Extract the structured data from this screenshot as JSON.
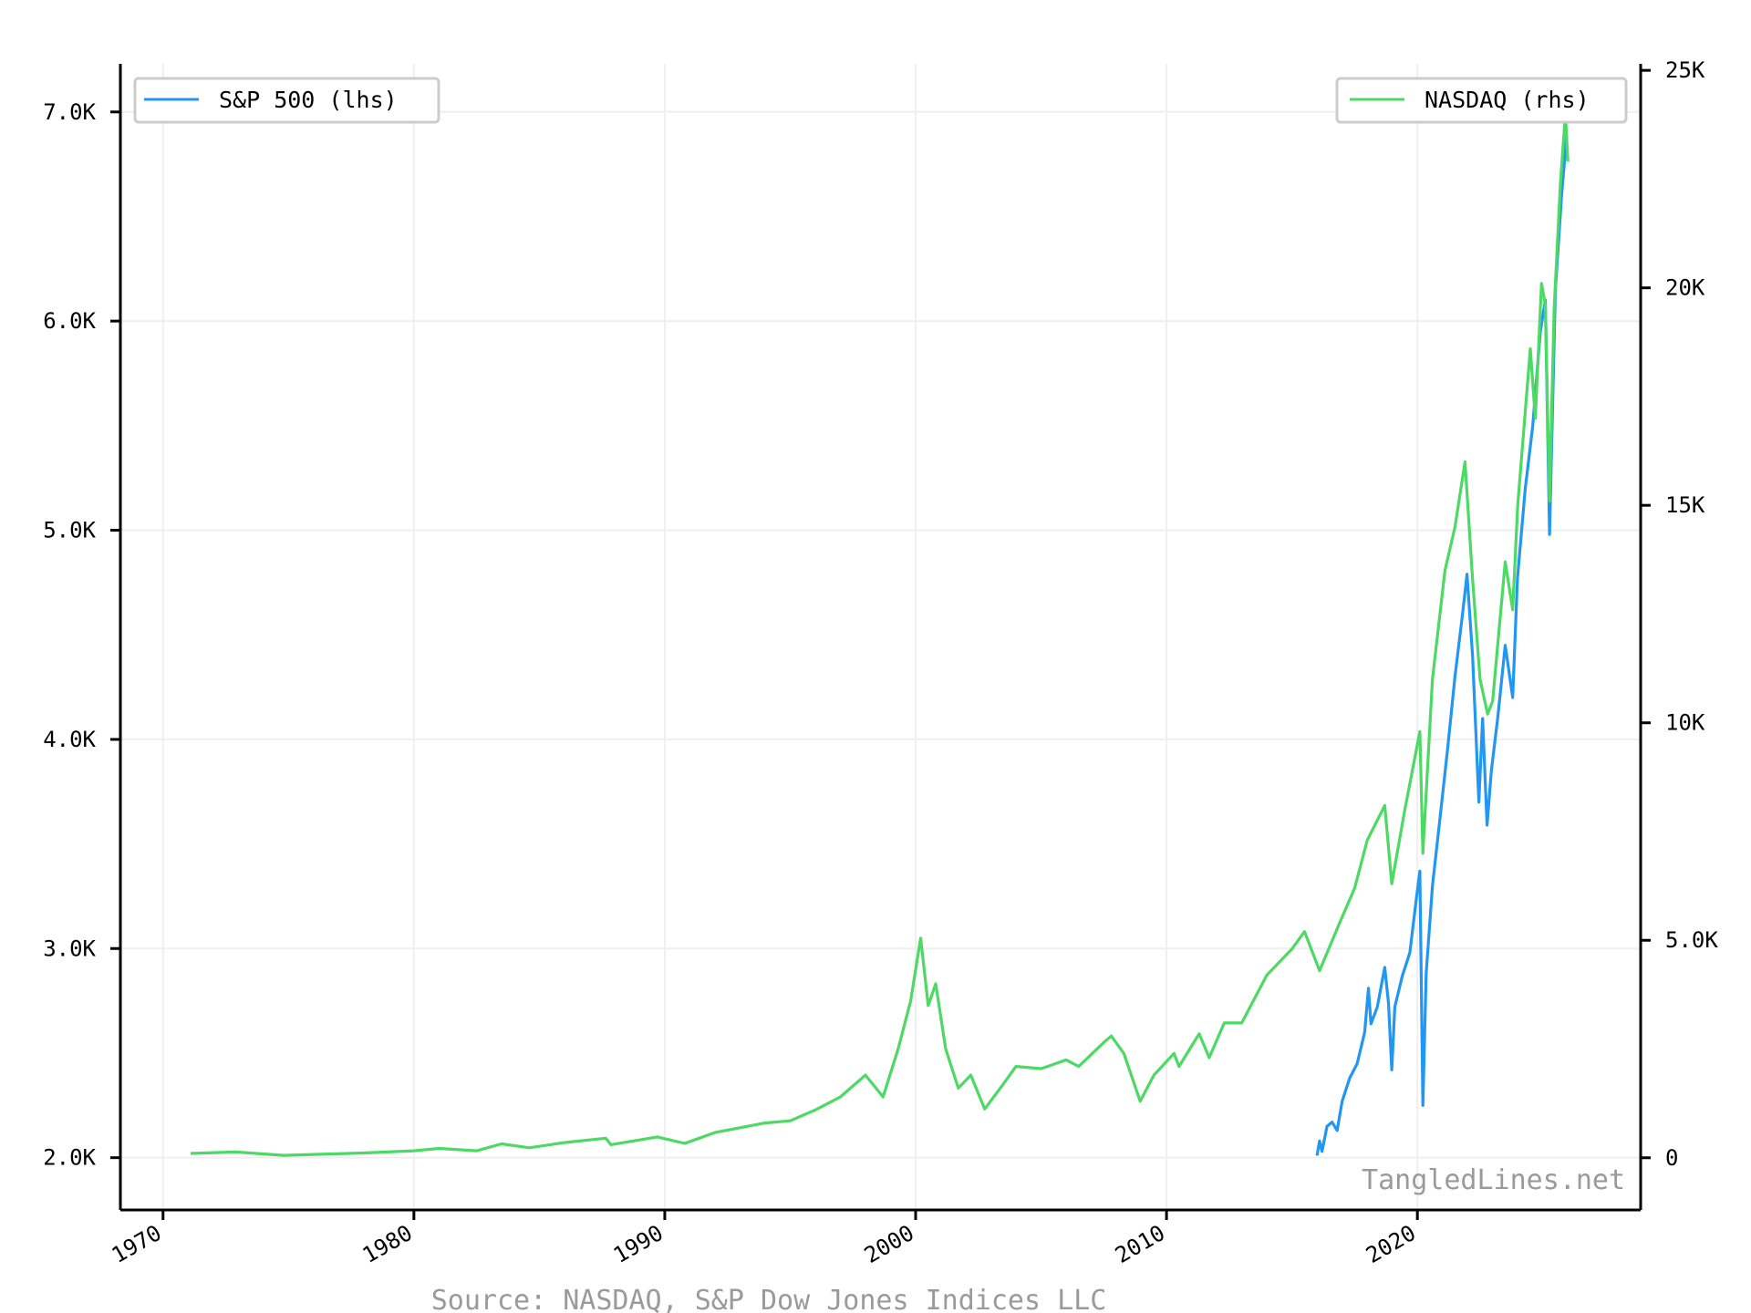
{
  "chart_data": {
    "type": "line",
    "title": "",
    "xlabel": "",
    "ylabel": "",
    "x_axis": {
      "ticks": [
        "1970",
        "1980",
        "1990",
        "2000",
        "2010",
        "2020"
      ],
      "range": [
        1968.3,
        2028.9
      ]
    },
    "y_left": {
      "ticks": [
        "2.0K",
        "3.0K",
        "4.0K",
        "5.0K",
        "6.0K",
        "7.0K"
      ],
      "tick_values": [
        2000,
        3000,
        4000,
        5000,
        6000,
        7000
      ],
      "range": [
        1750,
        7230
      ]
    },
    "y_right": {
      "ticks": [
        "0",
        "5.0K",
        "10K",
        "15K",
        "20K",
        "25K"
      ],
      "tick_values": [
        0,
        5000,
        10000,
        15000,
        20000,
        25000
      ],
      "range": [
        -1200,
        25150
      ]
    },
    "grid": true,
    "legend_left": {
      "label": "S&P 500 (lhs)",
      "placement": "top-left"
    },
    "legend_right": {
      "label": "NASDAQ (rhs)",
      "placement": "top-right"
    },
    "series": [
      {
        "name": "S&P 500 (lhs)",
        "axis": "left",
        "color": "#2196f3",
        "points": [
          [
            2016.0,
            2010
          ],
          [
            2016.1,
            2080
          ],
          [
            2016.2,
            2030
          ],
          [
            2016.4,
            2150
          ],
          [
            2016.6,
            2170
          ],
          [
            2016.8,
            2130
          ],
          [
            2017.0,
            2270
          ],
          [
            2017.3,
            2380
          ],
          [
            2017.6,
            2450
          ],
          [
            2017.9,
            2600
          ],
          [
            2018.05,
            2810
          ],
          [
            2018.15,
            2640
          ],
          [
            2018.4,
            2720
          ],
          [
            2018.7,
            2910
          ],
          [
            2018.85,
            2740
          ],
          [
            2018.98,
            2420
          ],
          [
            2019.1,
            2720
          ],
          [
            2019.4,
            2870
          ],
          [
            2019.7,
            2980
          ],
          [
            2019.95,
            3230
          ],
          [
            2020.1,
            3370
          ],
          [
            2020.22,
            2250
          ],
          [
            2020.35,
            2880
          ],
          [
            2020.6,
            3300
          ],
          [
            2020.9,
            3620
          ],
          [
            2021.2,
            3950
          ],
          [
            2021.5,
            4300
          ],
          [
            2021.8,
            4600
          ],
          [
            2021.98,
            4790
          ],
          [
            2022.2,
            4400
          ],
          [
            2022.45,
            3700
          ],
          [
            2022.6,
            4100
          ],
          [
            2022.78,
            3590
          ],
          [
            2022.95,
            3850
          ],
          [
            2023.2,
            4100
          ],
          [
            2023.5,
            4450
          ],
          [
            2023.8,
            4200
          ],
          [
            2023.99,
            4770
          ],
          [
            2024.3,
            5200
          ],
          [
            2024.6,
            5500
          ],
          [
            2024.9,
            5950
          ],
          [
            2025.1,
            6100
          ],
          [
            2025.27,
            4980
          ],
          [
            2025.5,
            6150
          ],
          [
            2025.75,
            6600
          ],
          [
            2025.95,
            6890
          ]
        ]
      },
      {
        "name": "NASDAQ (rhs)",
        "axis": "right",
        "color": "#4cd964",
        "points": [
          [
            1971.1,
            100
          ],
          [
            1972.9,
            133
          ],
          [
            1974.8,
            55
          ],
          [
            1978.0,
            110
          ],
          [
            1980.0,
            160
          ],
          [
            1981.0,
            215
          ],
          [
            1982.5,
            160
          ],
          [
            1983.5,
            320
          ],
          [
            1984.6,
            230
          ],
          [
            1986.0,
            350
          ],
          [
            1987.65,
            450
          ],
          [
            1987.85,
            300
          ],
          [
            1989.7,
            480
          ],
          [
            1990.8,
            330
          ],
          [
            1992.0,
            580
          ],
          [
            1994.0,
            800
          ],
          [
            1995.0,
            850
          ],
          [
            1996.0,
            1100
          ],
          [
            1997.0,
            1400
          ],
          [
            1998.0,
            1900
          ],
          [
            1998.7,
            1400
          ],
          [
            1999.3,
            2500
          ],
          [
            1999.8,
            3600
          ],
          [
            2000.2,
            5050
          ],
          [
            2000.5,
            3500
          ],
          [
            2000.8,
            4000
          ],
          [
            2001.2,
            2500
          ],
          [
            2001.7,
            1600
          ],
          [
            2002.2,
            1900
          ],
          [
            2002.75,
            1120
          ],
          [
            2003.5,
            1700
          ],
          [
            2004.0,
            2100
          ],
          [
            2005.0,
            2050
          ],
          [
            2006.0,
            2250
          ],
          [
            2006.5,
            2100
          ],
          [
            2007.5,
            2650
          ],
          [
            2007.8,
            2800
          ],
          [
            2008.3,
            2400
          ],
          [
            2008.95,
            1300
          ],
          [
            2009.5,
            1900
          ],
          [
            2010.3,
            2400
          ],
          [
            2010.5,
            2100
          ],
          [
            2011.3,
            2850
          ],
          [
            2011.7,
            2300
          ],
          [
            2012.3,
            3100
          ],
          [
            2013.0,
            3100
          ],
          [
            2014.0,
            4200
          ],
          [
            2015.0,
            4800
          ],
          [
            2015.5,
            5200
          ],
          [
            2016.1,
            4300
          ],
          [
            2016.9,
            5400
          ],
          [
            2017.5,
            6200
          ],
          [
            2018.0,
            7300
          ],
          [
            2018.7,
            8100
          ],
          [
            2018.98,
            6300
          ],
          [
            2019.5,
            8000
          ],
          [
            2020.1,
            9800
          ],
          [
            2020.22,
            7000
          ],
          [
            2020.6,
            11000
          ],
          [
            2021.1,
            13500
          ],
          [
            2021.5,
            14500
          ],
          [
            2021.9,
            16000
          ],
          [
            2022.2,
            13300
          ],
          [
            2022.5,
            11000
          ],
          [
            2022.8,
            10200
          ],
          [
            2023.0,
            10500
          ],
          [
            2023.5,
            13700
          ],
          [
            2023.8,
            12600
          ],
          [
            2024.0,
            15000
          ],
          [
            2024.5,
            18600
          ],
          [
            2024.7,
            17000
          ],
          [
            2024.95,
            20100
          ],
          [
            2025.1,
            19600
          ],
          [
            2025.27,
            15100
          ],
          [
            2025.45,
            19500
          ],
          [
            2025.7,
            22400
          ],
          [
            2025.9,
            24000
          ],
          [
            2026.0,
            22900
          ]
        ]
      }
    ]
  },
  "watermark": "TangledLines.net",
  "source": "Source: NASDAQ, S&P Dow Jones Indices LLC"
}
